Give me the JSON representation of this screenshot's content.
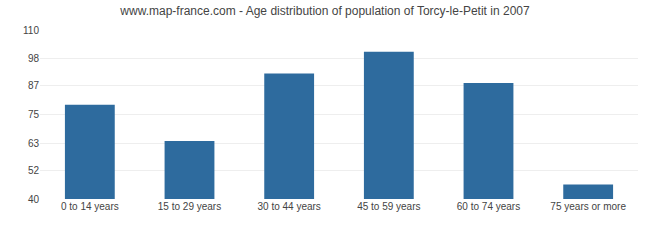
{
  "chart_data": {
    "type": "bar",
    "title": "www.map-france.com - Age distribution of population of Torcy-le-Petit in 2007",
    "categories": [
      "0 to 14 years",
      "15 to 29 years",
      "30 to 44 years",
      "45 to 59 years",
      "60 to 74 years",
      "75 years or more"
    ],
    "values": [
      79,
      64,
      92,
      101,
      88,
      46
    ],
    "color": "#2e6b9e",
    "ylim": [
      40,
      110
    ],
    "yticks": [
      40,
      52,
      63,
      75,
      87,
      98,
      110
    ],
    "grid": true
  }
}
